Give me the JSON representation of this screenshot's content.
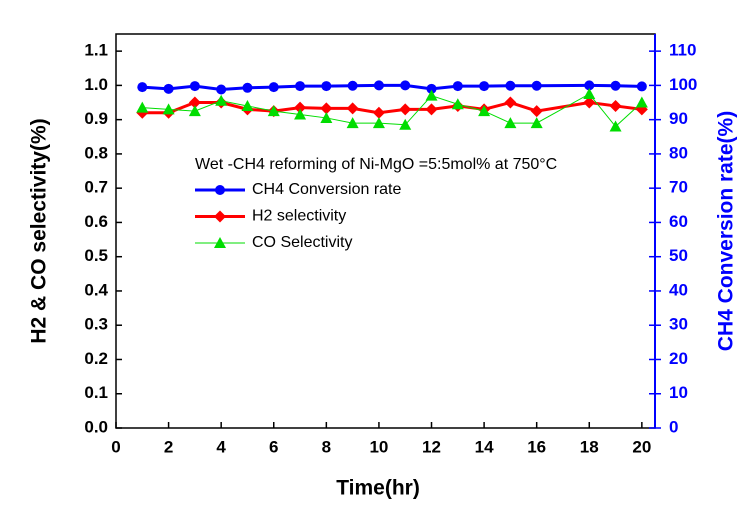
{
  "chart_data": {
    "type": "line",
    "title_annotation": "Wet -CH4 reforming of Ni-MgO =5:5mol% at 750°C",
    "x_label": "Time(hr)",
    "y_label": "H2 & CO selectivity(%)",
    "y2_label": "CH4 Conversion rate(%)",
    "x": [
      1,
      2,
      3,
      4,
      5,
      6,
      7,
      8,
      9,
      10,
      11,
      12,
      13,
      14,
      15,
      16,
      18,
      19,
      20
    ],
    "xlim": [
      0,
      20.5
    ],
    "xticks": [
      0,
      2,
      4,
      6,
      8,
      10,
      12,
      14,
      16,
      18,
      20
    ],
    "ylim": [
      0,
      1.15
    ],
    "yticks": [
      {
        "value": 0,
        "label": "0.0"
      },
      0.1,
      0.2,
      0.3,
      0.4,
      0.5,
      0.6,
      0.7,
      0.8,
      0.9,
      {
        "value": 1,
        "label": "1.0"
      },
      1.1
    ],
    "y2lim": [
      0,
      115
    ],
    "y2ticks": [
      0,
      10,
      20,
      30,
      40,
      50,
      60,
      70,
      80,
      90,
      100,
      110
    ],
    "series": [
      {
        "name": "CH4 Conversion rate",
        "color": "#0000ff",
        "marker": "circle",
        "axis": "y2",
        "values": [
          99.5,
          99.0,
          99.8,
          98.8,
          99.3,
          99.5,
          99.8,
          99.8,
          99.9,
          100.0,
          100.0,
          99.0,
          99.8,
          99.8,
          99.9,
          99.9,
          100.0,
          99.9,
          99.7
        ]
      },
      {
        "name": "H2 selectivity",
        "color": "#ff0000",
        "marker": "diamond",
        "values": [
          0.92,
          0.92,
          0.95,
          0.95,
          0.93,
          0.925,
          0.935,
          0.933,
          0.933,
          0.92,
          0.93,
          0.93,
          0.94,
          0.93,
          0.95,
          0.925,
          0.95,
          0.94,
          0.93
        ]
      },
      {
        "name": "CO Selectivity",
        "color": "#00dd00",
        "marker": "triangle",
        "values": [
          0.935,
          0.93,
          0.925,
          0.955,
          0.94,
          0.925,
          0.915,
          0.905,
          0.89,
          0.89,
          0.885,
          0.97,
          0.945,
          0.925,
          0.89,
          0.89,
          0.975,
          0.88,
          0.95
        ]
      }
    ]
  }
}
